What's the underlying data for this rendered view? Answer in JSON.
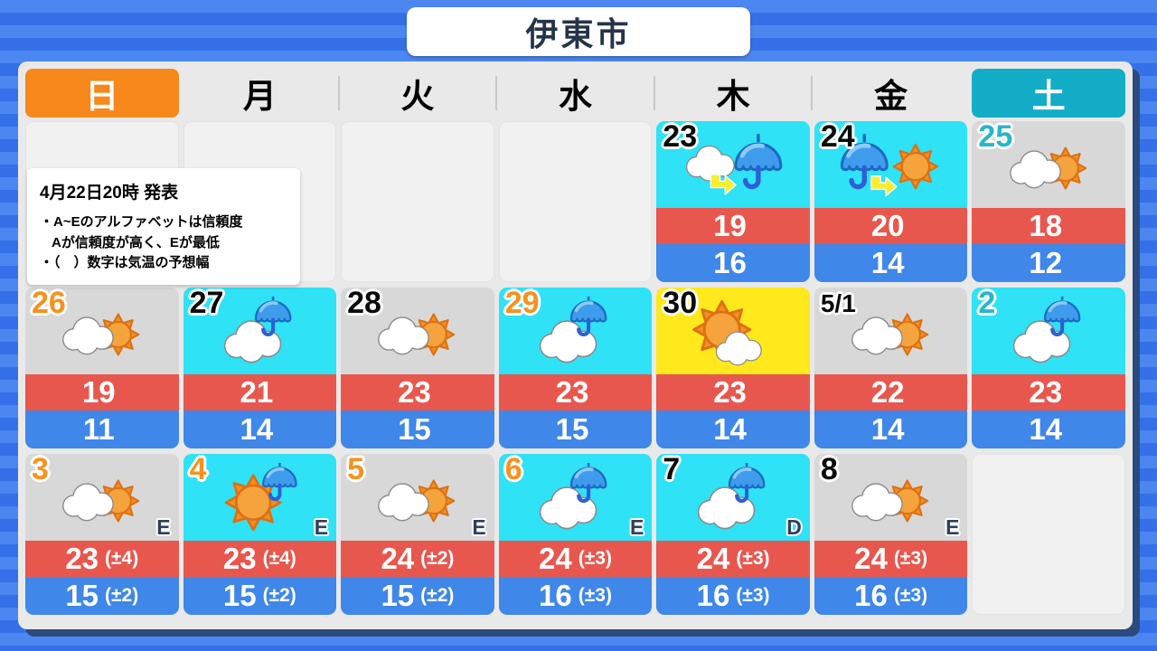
{
  "title": "伊東市",
  "notice": {
    "issued": "4月22日20時 発表",
    "line1": "・A~Eのアルファベットは信頼度",
    "line2": "Aが信頼度が高く、Eが最低",
    "line3": "・（　）数字は気温の予想幅"
  },
  "weekdays": [
    {
      "label": "日",
      "type": "sunday"
    },
    {
      "label": "月",
      "type": "weekday"
    },
    {
      "label": "火",
      "type": "weekday"
    },
    {
      "label": "水",
      "type": "weekday"
    },
    {
      "label": "木",
      "type": "weekday"
    },
    {
      "label": "金",
      "type": "weekday"
    },
    {
      "label": "土",
      "type": "saturday"
    }
  ],
  "calendar": {
    "cells": [
      null,
      null,
      null,
      null,
      {
        "date_label": "23",
        "date_color": "black",
        "bg": "cyan",
        "icon": "cloud-then-rain",
        "reliability": "",
        "high": "19",
        "high_range": "",
        "low": "16",
        "low_range": ""
      },
      {
        "date_label": "24",
        "date_color": "black",
        "bg": "cyan",
        "icon": "rain-then-sun",
        "reliability": "",
        "high": "20",
        "high_range": "",
        "low": "14",
        "low_range": ""
      },
      {
        "date_label": "25",
        "date_color": "cyan",
        "bg": "gray",
        "icon": "cloud-sun",
        "reliability": "",
        "high": "18",
        "high_range": "",
        "low": "12",
        "low_range": ""
      },
      {
        "date_label": "26",
        "date_color": "orange",
        "bg": "gray",
        "icon": "cloud-sun",
        "reliability": "",
        "high": "19",
        "high_range": "",
        "low": "11",
        "low_range": ""
      },
      {
        "date_label": "27",
        "date_color": "black",
        "bg": "cyan",
        "icon": "cloud-umbrella",
        "reliability": "",
        "high": "21",
        "high_range": "",
        "low": "14",
        "low_range": ""
      },
      {
        "date_label": "28",
        "date_color": "black",
        "bg": "gray",
        "icon": "cloud-sun",
        "reliability": "",
        "high": "23",
        "high_range": "",
        "low": "15",
        "low_range": ""
      },
      {
        "date_label": "29",
        "date_color": "orange",
        "bg": "cyan",
        "icon": "cloud-umbrella",
        "reliability": "",
        "high": "23",
        "high_range": "",
        "low": "15",
        "low_range": ""
      },
      {
        "date_label": "30",
        "date_color": "black",
        "bg": "yellow",
        "icon": "sun-cloud",
        "reliability": "",
        "high": "23",
        "high_range": "",
        "low": "14",
        "low_range": ""
      },
      {
        "date_label": "5/1",
        "date_color": "black",
        "bg": "gray",
        "icon": "cloud-sun",
        "reliability": "",
        "high": "22",
        "high_range": "",
        "low": "14",
        "low_range": ""
      },
      {
        "date_label": "2",
        "date_color": "cyan",
        "bg": "cyan",
        "icon": "cloud-umbrella",
        "reliability": "",
        "high": "23",
        "high_range": "",
        "low": "14",
        "low_range": ""
      },
      {
        "date_label": "3",
        "date_color": "orange",
        "bg": "gray",
        "icon": "cloud-sun",
        "reliability": "E",
        "high": "23",
        "high_range": "(±4)",
        "low": "15",
        "low_range": "(±2)"
      },
      {
        "date_label": "4",
        "date_color": "orange",
        "bg": "cyan",
        "icon": "sun-umbrella",
        "reliability": "E",
        "high": "23",
        "high_range": "(±4)",
        "low": "15",
        "low_range": "(±2)"
      },
      {
        "date_label": "5",
        "date_color": "orange",
        "bg": "gray",
        "icon": "cloud-sun",
        "reliability": "E",
        "high": "24",
        "high_range": "(±2)",
        "low": "15",
        "low_range": "(±2)"
      },
      {
        "date_label": "6",
        "date_color": "orange",
        "bg": "cyan",
        "icon": "cloud-umbrella",
        "reliability": "E",
        "high": "24",
        "high_range": "(±3)",
        "low": "16",
        "low_range": "(±3)"
      },
      {
        "date_label": "7",
        "date_color": "black",
        "bg": "cyan",
        "icon": "cloud-umbrella",
        "reliability": "D",
        "high": "24",
        "high_range": "(±3)",
        "low": "16",
        "low_range": "(±3)"
      },
      {
        "date_label": "8",
        "date_color": "black",
        "bg": "gray",
        "icon": "cloud-sun",
        "reliability": "E",
        "high": "24",
        "high_range": "(±3)",
        "low": "16",
        "low_range": "(±3)"
      },
      null
    ]
  },
  "colors": {
    "sunday_header": "#F6881C",
    "saturday_header": "#13ADC8",
    "cell_cyan": "#2FE2F5",
    "cell_gray": "#D8D8D8",
    "cell_yellow": "#FFE81C",
    "high_band": "#E8574E",
    "low_band": "#3F87E9",
    "stripe_light": "#4C86F0",
    "stripe_dark": "#3470E8",
    "panel_shadow": "#2B4B7F",
    "holiday_date": "#F6921D",
    "saturday_date": "#27B6CE"
  },
  "chart_data": {
    "type": "table",
    "title": "伊東市",
    "issued": "4月22日20時 発表",
    "columns": [
      "date",
      "weather_icon",
      "high",
      "low",
      "reliability",
      "high_range",
      "low_range"
    ],
    "rows": [
      [
        "4/23",
        "cloud-then-rain",
        19,
        16,
        "",
        "",
        ""
      ],
      [
        "4/24",
        "rain-then-sun",
        20,
        14,
        "",
        "",
        ""
      ],
      [
        "4/25",
        "cloud-sun",
        18,
        12,
        "",
        "",
        ""
      ],
      [
        "4/26",
        "cloud-sun",
        19,
        11,
        "",
        "",
        ""
      ],
      [
        "4/27",
        "cloud-umbrella",
        21,
        14,
        "",
        "",
        ""
      ],
      [
        "4/28",
        "cloud-sun",
        23,
        15,
        "",
        "",
        ""
      ],
      [
        "4/29",
        "cloud-umbrella",
        23,
        15,
        "",
        "",
        ""
      ],
      [
        "4/30",
        "sun-cloud",
        23,
        14,
        "",
        "",
        ""
      ],
      [
        "5/1",
        "cloud-sun",
        22,
        14,
        "",
        "",
        ""
      ],
      [
        "5/2",
        "cloud-umbrella",
        23,
        14,
        "",
        "",
        ""
      ],
      [
        "5/3",
        "cloud-sun",
        23,
        15,
        "E",
        "±4",
        "±2"
      ],
      [
        "5/4",
        "sun-umbrella",
        23,
        15,
        "E",
        "±4",
        "±2"
      ],
      [
        "5/5",
        "cloud-sun",
        24,
        15,
        "E",
        "±2",
        "±2"
      ],
      [
        "5/6",
        "cloud-umbrella",
        24,
        16,
        "E",
        "±3",
        "±3"
      ],
      [
        "5/7",
        "cloud-umbrella",
        24,
        16,
        "D",
        "±3",
        "±3"
      ],
      [
        "5/8",
        "cloud-sun",
        24,
        16,
        "E",
        "±3",
        "±3"
      ]
    ]
  }
}
